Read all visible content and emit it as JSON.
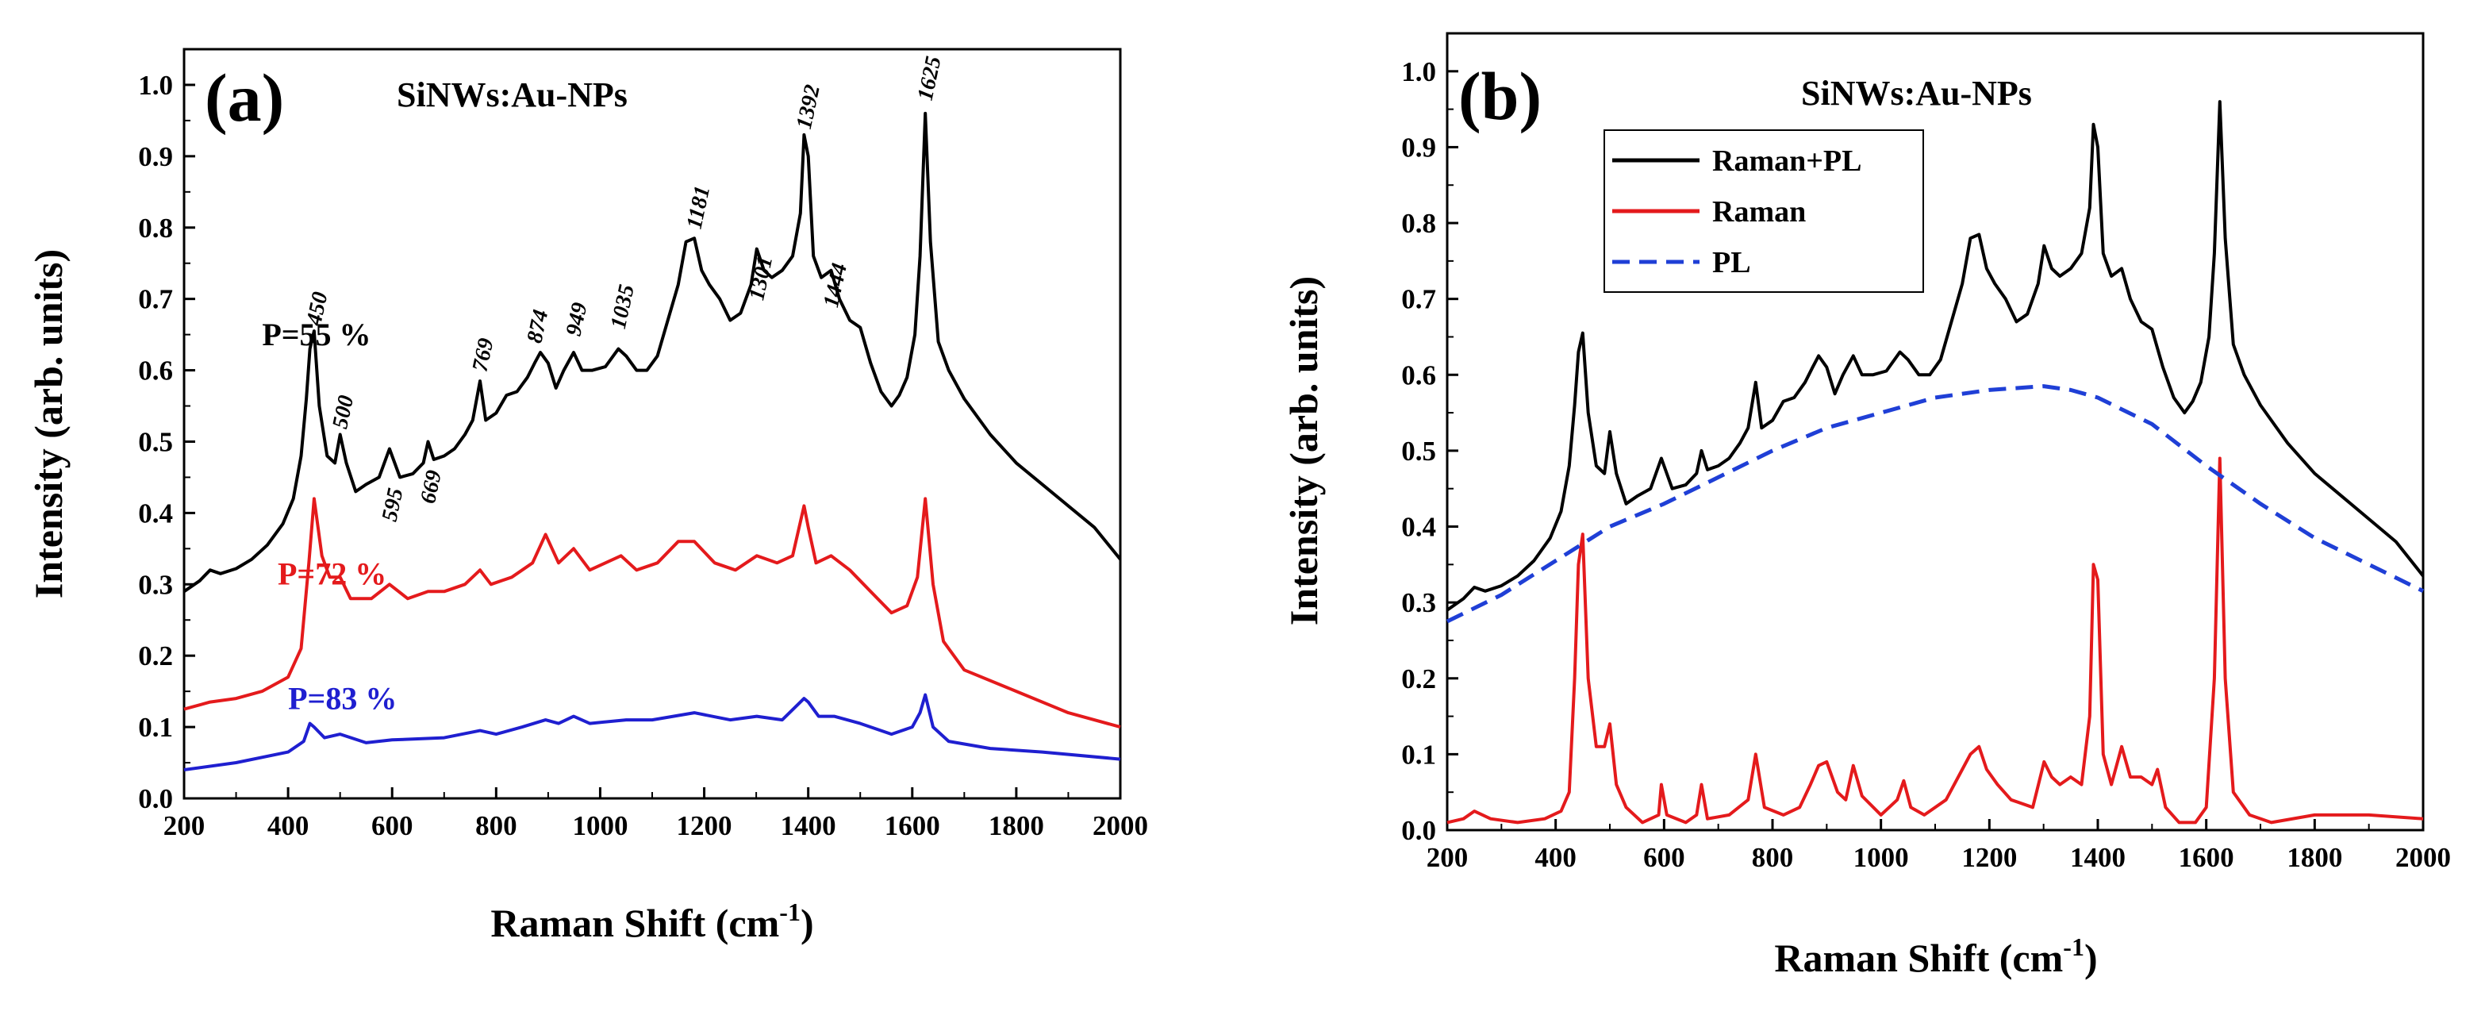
{
  "chart_data": [
    {
      "panel": "(a)",
      "type": "line",
      "title": "SiNWs:Au-NPs",
      "xlabel": "Raman Shift (cm",
      "xlabel_sup": "-1",
      "xlabel_end": ")",
      "ylabel": "Intensity (arb. units)",
      "xlim": [
        200,
        2000
      ],
      "ylim": [
        0.0,
        1.05
      ],
      "xticks": [
        200,
        400,
        600,
        800,
        1000,
        1200,
        1400,
        1600,
        1800,
        2000
      ],
      "yticks": [
        "0.0",
        "0.1",
        "0.2",
        "0.3",
        "0.4",
        "0.5",
        "0.6",
        "0.7",
        "0.8",
        "0.9",
        "1.0"
      ],
      "peak_labels": [
        {
          "text": "450",
          "x": 450,
          "y": 0.655
        },
        {
          "text": "500",
          "x": 500,
          "y": 0.51
        },
        {
          "text": "595",
          "x": 595,
          "y": 0.38
        },
        {
          "text": "669",
          "x": 669,
          "y": 0.405
        },
        {
          "text": "769",
          "x": 769,
          "y": 0.59
        },
        {
          "text": "874",
          "x": 874,
          "y": 0.63
        },
        {
          "text": "949",
          "x": 949,
          "y": 0.64
        },
        {
          "text": "1035",
          "x": 1035,
          "y": 0.65
        },
        {
          "text": "1181",
          "x": 1181,
          "y": 0.79
        },
        {
          "text": "1301",
          "x": 1301,
          "y": 0.69
        },
        {
          "text": "1392",
          "x": 1392,
          "y": 0.93
        },
        {
          "text": "1444",
          "x": 1444,
          "y": 0.68
        },
        {
          "text": "1625",
          "x": 1625,
          "y": 0.97
        }
      ],
      "series": [
        {
          "name": "P=55 %",
          "color": "#000000",
          "label_pos": {
            "x": 350,
            "y": 0.635
          },
          "x": [
            200,
            230,
            250,
            270,
            300,
            330,
            360,
            390,
            410,
            425,
            435,
            442,
            450,
            460,
            475,
            490,
            500,
            512,
            530,
            550,
            575,
            595,
            615,
            640,
            660,
            669,
            680,
            700,
            720,
            740,
            755,
            769,
            780,
            800,
            820,
            840,
            860,
            874,
            885,
            900,
            915,
            930,
            949,
            965,
            985,
            1010,
            1035,
            1050,
            1070,
            1090,
            1110,
            1130,
            1150,
            1165,
            1181,
            1195,
            1210,
            1230,
            1250,
            1270,
            1290,
            1301,
            1315,
            1330,
            1350,
            1370,
            1385,
            1392,
            1400,
            1410,
            1425,
            1444,
            1460,
            1480,
            1500,
            1520,
            1540,
            1560,
            1575,
            1590,
            1605,
            1615,
            1625,
            1635,
            1650,
            1670,
            1700,
            1750,
            1800,
            1850,
            1900,
            1950,
            2000
          ],
          "values": [
            0.29,
            0.305,
            0.32,
            0.315,
            0.322,
            0.335,
            0.355,
            0.385,
            0.42,
            0.48,
            0.56,
            0.63,
            0.655,
            0.55,
            0.48,
            0.47,
            0.51,
            0.47,
            0.43,
            0.44,
            0.45,
            0.49,
            0.45,
            0.455,
            0.47,
            0.5,
            0.475,
            0.48,
            0.49,
            0.51,
            0.53,
            0.585,
            0.53,
            0.54,
            0.565,
            0.57,
            0.59,
            0.61,
            0.625,
            0.61,
            0.575,
            0.6,
            0.625,
            0.6,
            0.6,
            0.605,
            0.63,
            0.62,
            0.6,
            0.6,
            0.62,
            0.67,
            0.72,
            0.78,
            0.785,
            0.74,
            0.72,
            0.7,
            0.67,
            0.68,
            0.72,
            0.77,
            0.74,
            0.73,
            0.74,
            0.76,
            0.82,
            0.93,
            0.9,
            0.76,
            0.73,
            0.74,
            0.7,
            0.67,
            0.66,
            0.61,
            0.57,
            0.55,
            0.565,
            0.59,
            0.65,
            0.76,
            0.96,
            0.78,
            0.64,
            0.6,
            0.56,
            0.51,
            0.47,
            0.44,
            0.41,
            0.38,
            0.335
          ]
        },
        {
          "name": "P=72 %",
          "color": "#e41a1c",
          "label_pos": {
            "x": 380,
            "y": 0.3
          },
          "x": [
            200,
            250,
            300,
            350,
            400,
            425,
            440,
            450,
            465,
            480,
            500,
            520,
            560,
            595,
            630,
            669,
            700,
            740,
            769,
            790,
            830,
            870,
            895,
            920,
            949,
            980,
            1010,
            1040,
            1070,
            1110,
            1150,
            1181,
            1220,
            1260,
            1301,
            1340,
            1370,
            1392,
            1400,
            1415,
            1444,
            1480,
            1520,
            1560,
            1590,
            1610,
            1625,
            1640,
            1660,
            1700,
            1800,
            1900,
            2000
          ],
          "values": [
            0.125,
            0.135,
            0.14,
            0.15,
            0.17,
            0.21,
            0.33,
            0.42,
            0.34,
            0.31,
            0.31,
            0.28,
            0.28,
            0.3,
            0.28,
            0.29,
            0.29,
            0.3,
            0.32,
            0.3,
            0.31,
            0.33,
            0.37,
            0.33,
            0.35,
            0.32,
            0.33,
            0.34,
            0.32,
            0.33,
            0.36,
            0.36,
            0.33,
            0.32,
            0.34,
            0.33,
            0.34,
            0.41,
            0.38,
            0.33,
            0.34,
            0.32,
            0.29,
            0.26,
            0.27,
            0.31,
            0.42,
            0.3,
            0.22,
            0.18,
            0.15,
            0.12,
            0.1
          ]
        },
        {
          "name": "P=83 %",
          "color": "#1f1fd0",
          "label_pos": {
            "x": 400,
            "y": 0.125
          },
          "x": [
            200,
            300,
            400,
            430,
            442,
            450,
            470,
            500,
            550,
            600,
            700,
            769,
            800,
            850,
            895,
            920,
            949,
            980,
            1050,
            1100,
            1181,
            1250,
            1301,
            1350,
            1392,
            1400,
            1420,
            1450,
            1500,
            1560,
            1600,
            1615,
            1625,
            1640,
            1670,
            1750,
            1850,
            2000
          ],
          "values": [
            0.04,
            0.05,
            0.065,
            0.08,
            0.105,
            0.1,
            0.085,
            0.09,
            0.078,
            0.082,
            0.085,
            0.095,
            0.09,
            0.1,
            0.11,
            0.105,
            0.115,
            0.105,
            0.11,
            0.11,
            0.12,
            0.11,
            0.115,
            0.11,
            0.14,
            0.135,
            0.115,
            0.115,
            0.105,
            0.09,
            0.1,
            0.12,
            0.145,
            0.1,
            0.08,
            0.07,
            0.065,
            0.055
          ]
        }
      ]
    },
    {
      "panel": "(b)",
      "type": "line",
      "title": "SiNWs:Au-NPs",
      "xlabel": "Raman Shift (cm",
      "xlabel_sup": "-1",
      "xlabel_end": ")",
      "ylabel": "Intensity (arb. units)",
      "xlim": [
        200,
        2000
      ],
      "ylim": [
        0.0,
        1.05
      ],
      "xticks": [
        200,
        400,
        600,
        800,
        1000,
        1200,
        1400,
        1600,
        1800,
        2000
      ],
      "yticks": [
        "0.0",
        "0.1",
        "0.2",
        "0.3",
        "0.4",
        "0.5",
        "0.6",
        "0.7",
        "0.8",
        "0.9",
        "1.0"
      ],
      "legend_position": "top-left",
      "series": [
        {
          "name": "Raman+PL",
          "color": "#000000",
          "style": "solid",
          "x": [
            200,
            230,
            250,
            270,
            300,
            330,
            360,
            390,
            410,
            425,
            435,
            442,
            450,
            460,
            475,
            490,
            500,
            512,
            530,
            550,
            575,
            595,
            615,
            640,
            660,
            669,
            680,
            700,
            720,
            740,
            755,
            769,
            780,
            800,
            820,
            840,
            860,
            874,
            885,
            900,
            915,
            930,
            949,
            965,
            985,
            1010,
            1035,
            1050,
            1070,
            1090,
            1110,
            1130,
            1150,
            1165,
            1181,
            1195,
            1210,
            1230,
            1250,
            1270,
            1290,
            1301,
            1315,
            1330,
            1350,
            1370,
            1385,
            1392,
            1400,
            1410,
            1425,
            1444,
            1460,
            1480,
            1500,
            1520,
            1540,
            1560,
            1575,
            1590,
            1605,
            1615,
            1625,
            1635,
            1650,
            1670,
            1700,
            1750,
            1800,
            1850,
            1900,
            1950,
            2000
          ],
          "values": [
            0.29,
            0.305,
            0.32,
            0.315,
            0.322,
            0.335,
            0.355,
            0.385,
            0.42,
            0.48,
            0.56,
            0.63,
            0.655,
            0.55,
            0.48,
            0.47,
            0.525,
            0.47,
            0.43,
            0.44,
            0.45,
            0.49,
            0.45,
            0.455,
            0.47,
            0.5,
            0.475,
            0.48,
            0.49,
            0.51,
            0.53,
            0.59,
            0.53,
            0.54,
            0.565,
            0.57,
            0.59,
            0.61,
            0.625,
            0.61,
            0.575,
            0.6,
            0.625,
            0.6,
            0.6,
            0.605,
            0.63,
            0.62,
            0.6,
            0.6,
            0.62,
            0.67,
            0.72,
            0.78,
            0.785,
            0.74,
            0.72,
            0.7,
            0.67,
            0.68,
            0.72,
            0.77,
            0.74,
            0.73,
            0.74,
            0.76,
            0.82,
            0.93,
            0.9,
            0.76,
            0.73,
            0.74,
            0.7,
            0.67,
            0.66,
            0.61,
            0.57,
            0.55,
            0.565,
            0.59,
            0.65,
            0.76,
            0.96,
            0.78,
            0.64,
            0.6,
            0.56,
            0.51,
            0.47,
            0.44,
            0.41,
            0.38,
            0.335
          ]
        },
        {
          "name": "Raman",
          "color": "#e41a1c",
          "style": "solid",
          "x": [
            200,
            230,
            250,
            280,
            330,
            380,
            410,
            425,
            435,
            442,
            450,
            460,
            475,
            490,
            500,
            512,
            530,
            560,
            590,
            595,
            605,
            640,
            660,
            669,
            680,
            720,
            755,
            769,
            785,
            820,
            850,
            870,
            885,
            900,
            920,
            935,
            949,
            965,
            1000,
            1030,
            1042,
            1055,
            1080,
            1120,
            1150,
            1165,
            1181,
            1195,
            1215,
            1240,
            1280,
            1301,
            1315,
            1330,
            1350,
            1370,
            1385,
            1392,
            1400,
            1410,
            1425,
            1444,
            1460,
            1480,
            1500,
            1510,
            1525,
            1550,
            1580,
            1600,
            1615,
            1625,
            1635,
            1650,
            1680,
            1720,
            1800,
            1900,
            2000
          ],
          "values": [
            0.01,
            0.015,
            0.025,
            0.015,
            0.01,
            0.015,
            0.025,
            0.05,
            0.2,
            0.35,
            0.39,
            0.2,
            0.11,
            0.11,
            0.14,
            0.06,
            0.03,
            0.01,
            0.02,
            0.06,
            0.02,
            0.01,
            0.02,
            0.06,
            0.015,
            0.02,
            0.04,
            0.1,
            0.03,
            0.02,
            0.03,
            0.06,
            0.085,
            0.09,
            0.05,
            0.04,
            0.085,
            0.045,
            0.02,
            0.04,
            0.065,
            0.03,
            0.02,
            0.04,
            0.08,
            0.1,
            0.11,
            0.08,
            0.06,
            0.04,
            0.03,
            0.09,
            0.07,
            0.06,
            0.07,
            0.06,
            0.15,
            0.35,
            0.33,
            0.1,
            0.06,
            0.11,
            0.07,
            0.07,
            0.06,
            0.08,
            0.03,
            0.01,
            0.01,
            0.03,
            0.2,
            0.49,
            0.2,
            0.05,
            0.02,
            0.01,
            0.02,
            0.02,
            0.015
          ]
        },
        {
          "name": "PL",
          "color": "#1f3fd6",
          "style": "dashed",
          "x": [
            200,
            300,
            400,
            500,
            600,
            700,
            800,
            900,
            1000,
            1100,
            1200,
            1300,
            1350,
            1400,
            1500,
            1600,
            1700,
            1800,
            1900,
            2000
          ],
          "values": [
            0.275,
            0.31,
            0.355,
            0.4,
            0.43,
            0.465,
            0.5,
            0.53,
            0.55,
            0.57,
            0.58,
            0.585,
            0.58,
            0.57,
            0.535,
            0.48,
            0.43,
            0.385,
            0.35,
            0.315
          ]
        }
      ]
    }
  ]
}
